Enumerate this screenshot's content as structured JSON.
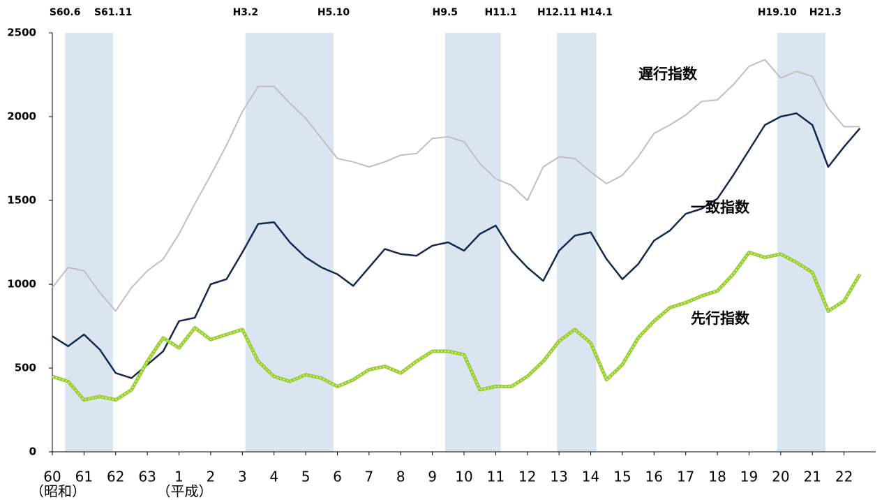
{
  "chart_data": {
    "type": "line",
    "x": [
      0,
      0.5,
      1,
      1.5,
      2,
      2.5,
      3,
      3.5,
      4,
      4.5,
      5,
      5.5,
      6,
      6.5,
      7,
      7.5,
      8,
      8.5,
      9,
      9.5,
      10,
      10.5,
      11,
      11.5,
      12,
      12.5,
      13,
      13.5,
      14,
      14.5,
      15,
      15.5,
      16,
      16.5,
      17,
      17.5,
      18,
      18.5,
      19,
      19.5,
      20,
      20.5,
      21,
      21.5,
      22,
      22.5,
      23,
      23.5,
      24,
      24.5,
      25,
      25.5
    ],
    "series": [
      {
        "name": "遅行指数",
        "color": "#bfbfbf",
        "values": [
          980,
          1100,
          1080,
          950,
          840,
          980,
          1080,
          1150,
          1300,
          1480,
          1650,
          1830,
          2030,
          2180,
          2180,
          2080,
          1990,
          1870,
          1750,
          1730,
          1700,
          1730,
          1770,
          1780,
          1870,
          1880,
          1850,
          1720,
          1630,
          1590,
          1500,
          1700,
          1760,
          1750,
          1670,
          1600,
          1650,
          1760,
          1900,
          1950,
          2010,
          2090,
          2100,
          2190,
          2300,
          2340,
          2230,
          2270,
          2240,
          2050,
          1940,
          1940
        ]
      },
      {
        "name": "一致指数",
        "color": "#14284b",
        "values": [
          690,
          630,
          700,
          610,
          470,
          440,
          520,
          600,
          780,
          800,
          1000,
          1030,
          1190,
          1360,
          1370,
          1250,
          1160,
          1100,
          1060,
          990,
          1100,
          1210,
          1180,
          1170,
          1230,
          1250,
          1200,
          1300,
          1350,
          1200,
          1100,
          1020,
          1200,
          1290,
          1310,
          1150,
          1030,
          1120,
          1260,
          1320,
          1420,
          1450,
          1510,
          1650,
          1800,
          1950,
          2000,
          2020,
          1950,
          1700,
          1820,
          1930
        ]
      },
      {
        "name": "先行指数",
        "color": "#9acd32",
        "values": [
          450,
          420,
          310,
          330,
          310,
          370,
          540,
          680,
          620,
          740,
          670,
          700,
          730,
          540,
          450,
          420,
          460,
          440,
          390,
          430,
          490,
          510,
          470,
          540,
          600,
          600,
          580,
          370,
          390,
          390,
          450,
          540,
          660,
          730,
          650,
          430,
          520,
          680,
          780,
          860,
          890,
          930,
          960,
          1060,
          1190,
          1160,
          1180,
          1130,
          1070,
          840,
          900,
          1060
        ]
      }
    ],
    "xlim": [
      0,
      26
    ],
    "xticks": [
      {
        "value": 0,
        "label": "60"
      },
      {
        "value": 1,
        "label": "61"
      },
      {
        "value": 2,
        "label": "62"
      },
      {
        "value": 3,
        "label": "63"
      },
      {
        "value": 4,
        "label": "1"
      },
      {
        "value": 5,
        "label": "2"
      },
      {
        "value": 6,
        "label": "3"
      },
      {
        "value": 7,
        "label": "4"
      },
      {
        "value": 8,
        "label": "5"
      },
      {
        "value": 9,
        "label": "6"
      },
      {
        "value": 10,
        "label": "7"
      },
      {
        "value": 11,
        "label": "8"
      },
      {
        "value": 12,
        "label": "9"
      },
      {
        "value": 13,
        "label": "10"
      },
      {
        "value": 14,
        "label": "11"
      },
      {
        "value": 15,
        "label": "12"
      },
      {
        "value": 16,
        "label": "13"
      },
      {
        "value": 17,
        "label": "14"
      },
      {
        "value": 18,
        "label": "15"
      },
      {
        "value": 19,
        "label": "16"
      },
      {
        "value": 20,
        "label": "17"
      },
      {
        "value": 21,
        "label": "18"
      },
      {
        "value": 22,
        "label": "19"
      },
      {
        "value": 23,
        "label": "20"
      },
      {
        "value": 24,
        "label": "21"
      },
      {
        "value": 25,
        "label": "22"
      }
    ],
    "era_labels": [
      "（昭和）",
      "（平成）"
    ],
    "ylim": [
      0,
      2500
    ],
    "yticks": [
      0,
      500,
      1000,
      1500,
      2000,
      2500
    ],
    "grid": false,
    "recessions": [
      {
        "start": 0.4,
        "end": 1.92,
        "start_label": "S60.6",
        "end_label": "S61.11"
      },
      {
        "start": 6.1,
        "end": 8.88,
        "start_label": "H3.2",
        "end_label": "H5.10"
      },
      {
        "start": 12.4,
        "end": 14.16,
        "start_label": "H9.5",
        "end_label": "H11.1"
      },
      {
        "start": 15.93,
        "end": 17.18,
        "start_label": "H12.11",
        "end_label": "H14.1"
      },
      {
        "start": 22.89,
        "end": 24.41,
        "start_label": "H19.10",
        "end_label": "H21.3"
      }
    ],
    "recession_color": "#dbe5f1"
  }
}
